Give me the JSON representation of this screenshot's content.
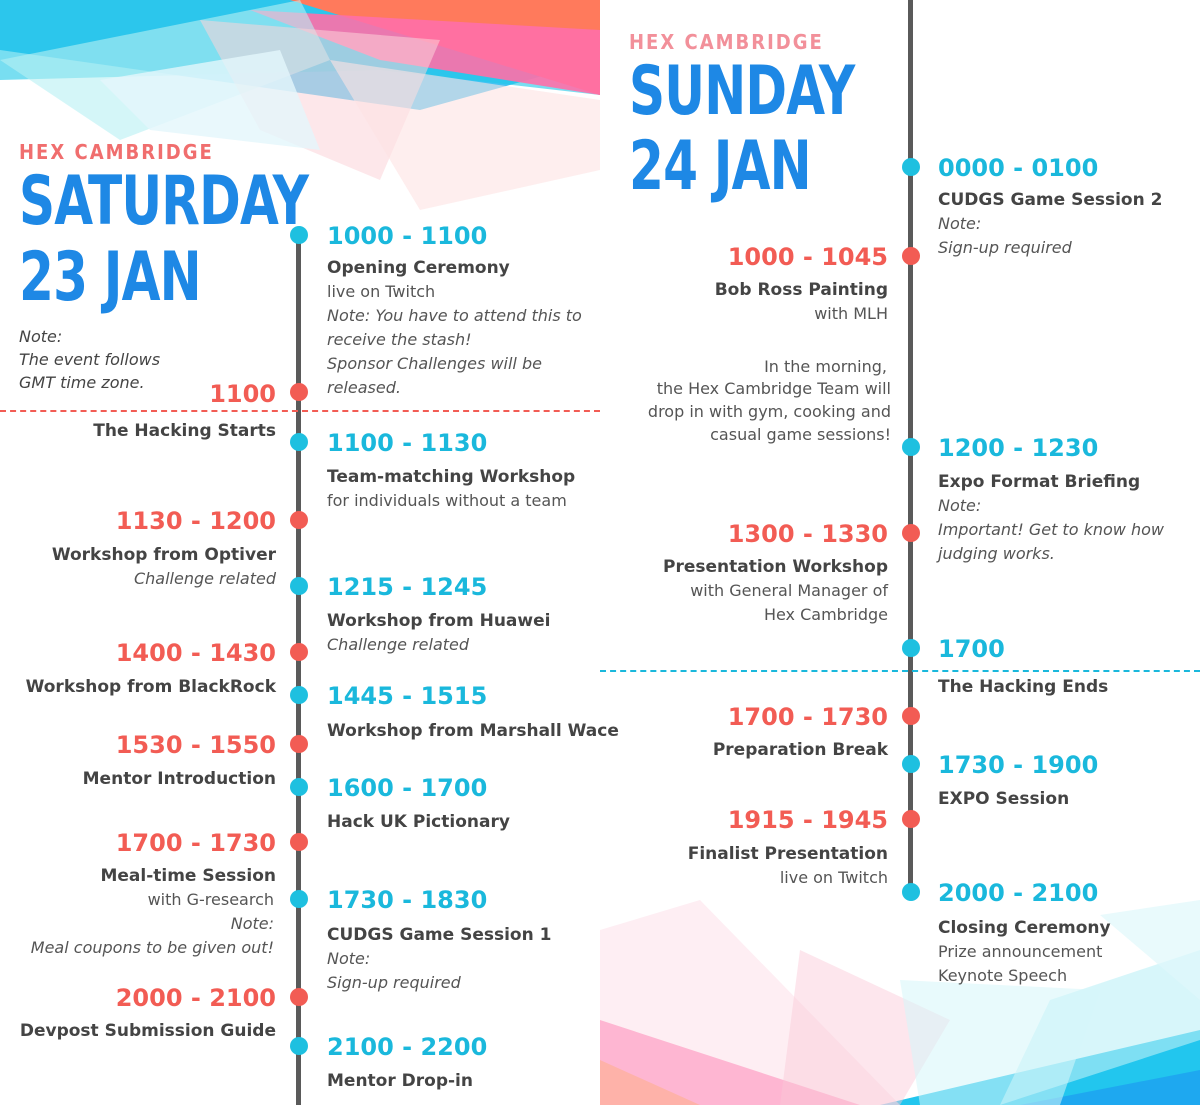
{
  "left": {
    "brand": "HEX CAMBRIDGE",
    "day": "SATURDAY",
    "date": "23 JAN",
    "note": [
      "Note:",
      "The event follows",
      "GMT time zone."
    ],
    "divider_time": "1100",
    "divider_label": "The Hacking Starts",
    "events_right": [
      {
        "time": "1000 - 1100",
        "title": "Opening Ceremony",
        "lines": [
          "live on Twitch"
        ],
        "italic": [
          "Note: You have to attend this to",
          "receive the stash!",
          "Sponsor Challenges will be",
          "released."
        ]
      },
      {
        "time": "1100 - 1130",
        "title": "Team-matching Workshop",
        "lines": [
          "for individuals without a team"
        ]
      },
      {
        "time": "1215 - 1245",
        "title": "Workshop from Huawei",
        "italic": [
          "Challenge related"
        ]
      },
      {
        "time": "1445 - 1515",
        "title": "Workshop from Marshall Wace"
      },
      {
        "time": "1600 - 1700",
        "title": "Hack UK Pictionary"
      },
      {
        "time": "1730 - 1830",
        "title": "CUDGS Game Session 1",
        "italic": [
          "Note:",
          "Sign-up required"
        ]
      },
      {
        "time": "2100 - 2200",
        "title": "Mentor Drop-in"
      }
    ],
    "events_left": [
      {
        "time": "1130 - 1200",
        "title": "Workshop from Optiver",
        "italic": [
          "Challenge related"
        ]
      },
      {
        "time": "1400 - 1430",
        "title": "Workshop from BlackRock"
      },
      {
        "time": "1530 - 1550",
        "title": "Mentor Introduction"
      },
      {
        "time": "1700 - 1730",
        "title": "Meal-time Session",
        "lines": [
          "with G-research"
        ],
        "italic": [
          "Note:",
          "Meal coupons to be given out!"
        ]
      },
      {
        "time": "2000 - 2100",
        "title": "Devpost Submission Guide"
      }
    ]
  },
  "right": {
    "brand": "HEX CAMBRIDGE",
    "day": "SUNDAY",
    "date": "24 JAN",
    "divider_time": "1700",
    "divider_label": "The Hacking Ends",
    "events_right": [
      {
        "time": "0000 - 0100",
        "title": "CUDGS Game Session 2",
        "italic": [
          "Note:",
          "Sign-up required"
        ]
      },
      {
        "time": "1200 - 1230",
        "title": "Expo Format Briefing",
        "italic": [
          "Note:",
          "Important! Get to know how",
          "judging works."
        ]
      },
      {
        "time": "1730 - 1900",
        "title": "EXPO Session"
      },
      {
        "time": "2000 - 2100",
        "title": "Closing Ceremony",
        "lines": [
          "Prize announcement",
          "Keynote Speech"
        ]
      }
    ],
    "events_left": [
      {
        "time": "1000 - 1045",
        "title": "Bob Ross Painting",
        "lines": [
          "with MLH"
        ]
      },
      {
        "time": "1300 - 1330",
        "title": "Presentation Workshop",
        "lines": [
          "with General Manager of",
          "Hex Cambridge"
        ]
      },
      {
        "time": "1700 - 1730",
        "title": "Preparation Break"
      },
      {
        "time": "1915 - 1945",
        "title": "Finalist Presentation",
        "lines": [
          "live on Twitch"
        ]
      }
    ],
    "morning_note": [
      "In the morning,",
      "the Hex Cambridge Team will",
      "drop in with gym, cooking and",
      "casual game sessions!"
    ]
  }
}
